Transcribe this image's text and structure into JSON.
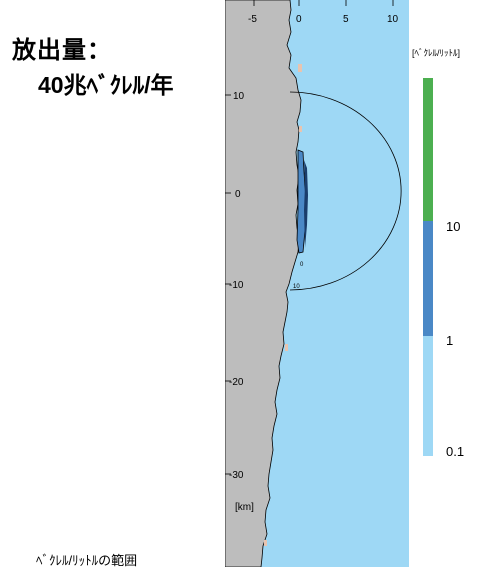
{
  "title": {
    "line1": "放出量：",
    "line2": "40兆ﾍﾞｸﾚﾙ/年"
  },
  "caption": "ﾍﾞｸﾚﾙ/ﾘｯﾄﾙの範囲",
  "map": {
    "x_ticks": [
      "-5",
      "0",
      "5",
      "10"
    ],
    "y_ticks": [
      "10",
      "0",
      "-10",
      "-20",
      "-30"
    ],
    "unit_km": "[km]",
    "contour_small_labels": [
      "0",
      "10"
    ]
  },
  "legend": {
    "unit": "[ﾍﾞｸﾚﾙ/ﾘｯﾄﾙ]",
    "labels": [
      "10",
      "1",
      "0.1"
    ],
    "colors": {
      "high": "#4caf50",
      "mid": "#4a88c6",
      "low": "#9ed8f5"
    }
  },
  "colors": {
    "sea": "#9ed8f5",
    "land": "#bdbdbd",
    "plume": "#4a88c6"
  }
}
